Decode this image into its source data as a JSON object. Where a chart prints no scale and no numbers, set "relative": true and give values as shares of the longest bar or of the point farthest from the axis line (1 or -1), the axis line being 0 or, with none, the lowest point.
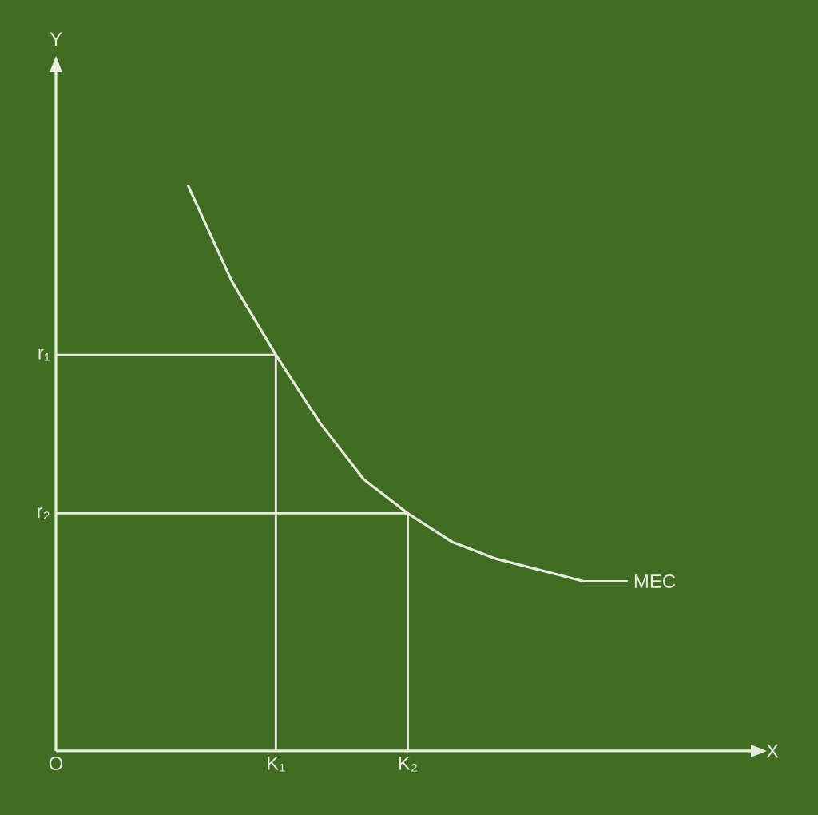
{
  "chart_data": {
    "type": "line",
    "relative": true,
    "xlabel": "X",
    "annotations": [
      "Y"
    ],
    "categories": [
      "O",
      null,
      null,
      null,
      null,
      "K₁",
      null,
      null,
      "K₂",
      null,
      null,
      null,
      null,
      null,
      null,
      null
    ],
    "series": [
      {
        "name": "MEC",
        "color": "#e6eddc",
        "values": [
          null,
          null,
          null,
          1,
          0.83,
          0.7,
          0.58,
          0.48,
          0.42,
          0.37,
          0.34,
          0.32,
          0.3,
          0.3,
          null,
          null
        ]
      }
    ],
    "ref_lines": [
      {
        "axis": "y",
        "value": 0.7,
        "label": "r₁"
      },
      {
        "axis": "y",
        "value": 0.42,
        "label": "r₂"
      }
    ],
    "line_style": "solid",
    "marker": "none"
  }
}
